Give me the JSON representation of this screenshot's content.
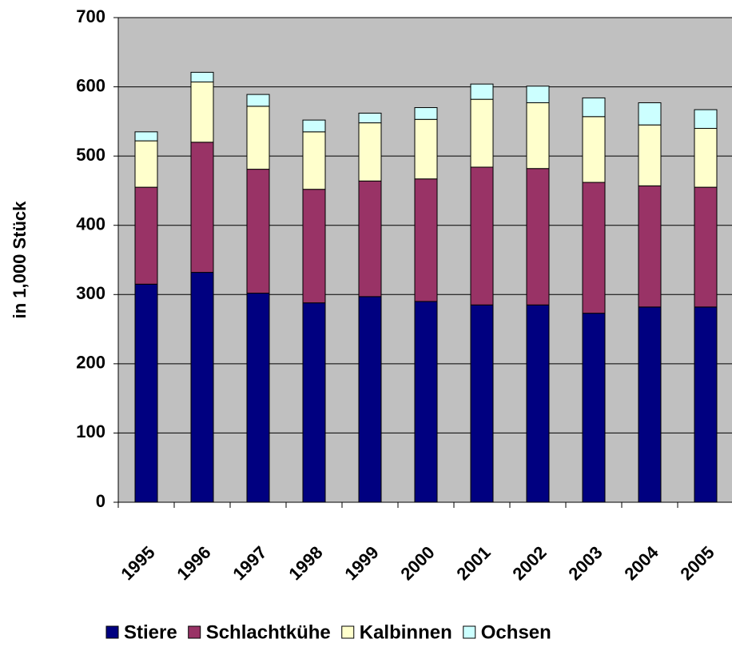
{
  "chart_data": {
    "type": "stacked_bar",
    "y_label": "in 1,000 Stück",
    "categories": [
      "1995",
      "1996",
      "1997",
      "1998",
      "1999",
      "2000",
      "2001",
      "2002",
      "2003",
      "2004",
      "2005"
    ],
    "series": [
      {
        "name": "Stiere",
        "color": "#000080",
        "values": [
          315,
          332,
          302,
          288,
          297,
          290,
          285,
          285,
          273,
          282,
          282
        ]
      },
      {
        "name": "Schlachtkühe",
        "color": "#993366",
        "values": [
          140,
          188,
          179,
          164,
          167,
          177,
          199,
          197,
          189,
          175,
          173
        ]
      },
      {
        "name": "Kalbinnen",
        "color": "#ffffcc",
        "values": [
          67,
          87,
          91,
          83,
          84,
          86,
          98,
          95,
          95,
          88,
          85
        ]
      },
      {
        "name": "Ochsen",
        "color": "#ccffff",
        "values": [
          13,
          14,
          17,
          17,
          14,
          17,
          22,
          24,
          27,
          32,
          27
        ]
      }
    ],
    "ylim": [
      0,
      700
    ],
    "yticks": [
      0,
      100,
      200,
      300,
      400,
      500,
      600,
      700
    ],
    "grid": true,
    "legend": "bottom",
    "plot_background": "#c0c0c0"
  }
}
